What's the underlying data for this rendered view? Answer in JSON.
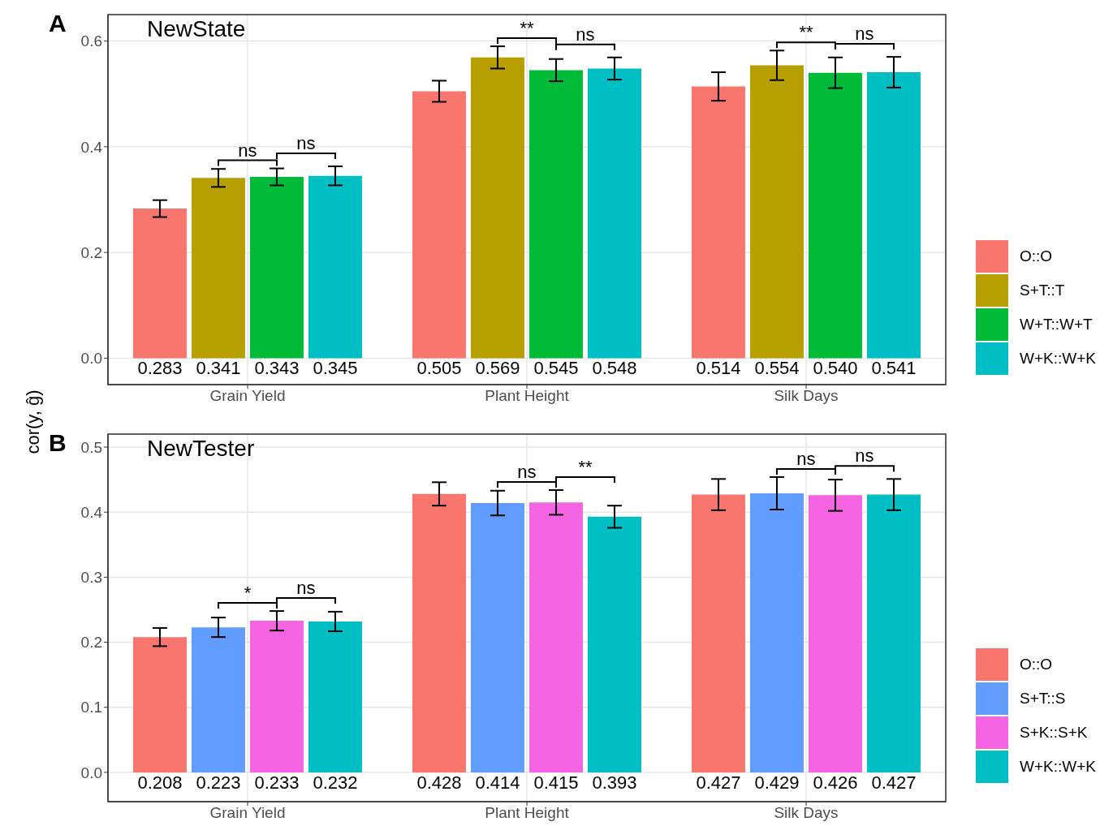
{
  "chart_data": [
    {
      "type": "bar",
      "title": "NewState",
      "ylabel": "cor(y, ĝ)",
      "annotations": [
        "A",
        "ns",
        "ns",
        "**",
        "ns",
        "**",
        "ns"
      ],
      "categories": [
        "Grain Yield",
        "Plant Height",
        "Silk Days"
      ],
      "series": [
        {
          "name": "O::O",
          "color": "#f8766d",
          "values": [
            0.283,
            0.505,
            0.514
          ],
          "errors": [
            0.016,
            0.02,
            0.027
          ],
          "value_labels": [
            "0.283",
            "0.505",
            "0.514"
          ]
        },
        {
          "name": "S+T::T",
          "color": "#b79f00",
          "values": [
            0.341,
            0.569,
            0.554
          ],
          "errors": [
            0.017,
            0.021,
            0.028
          ],
          "value_labels": [
            "0.341",
            "0.569",
            "0.554"
          ]
        },
        {
          "name": "W+T::W+T",
          "color": "#00ba38",
          "values": [
            0.343,
            0.545,
            0.54
          ],
          "errors": [
            0.016,
            0.021,
            0.029
          ],
          "value_labels": [
            "0.343",
            "0.545",
            "0.540"
          ]
        },
        {
          "name": "W+K::W+K",
          "color": "#00bfc4",
          "values": [
            0.345,
            0.548,
            0.541
          ],
          "errors": [
            0.018,
            0.021,
            0.029
          ],
          "value_labels": [
            "0.345",
            "0.548",
            "0.541"
          ]
        }
      ],
      "ylim": [
        -0.05,
        0.65
      ],
      "yticks": [
        {
          "value": 0,
          "label": "0.0"
        },
        0.2,
        0.4,
        0.6
      ],
      "grid": true,
      "legend": "right"
    },
    {
      "type": "bar",
      "title": "NewTester",
      "annotations": [
        "B",
        "*",
        "ns",
        "ns",
        "**",
        "ns",
        "ns"
      ],
      "categories": [
        "Grain Yield",
        "Plant Height",
        "Silk Days"
      ],
      "series": [
        {
          "name": "O::O",
          "color": "#f8766d",
          "values": [
            0.208,
            0.428,
            0.427
          ],
          "errors": [
            0.014,
            0.018,
            0.024
          ],
          "value_labels": [
            "0.208",
            "0.428",
            "0.427"
          ]
        },
        {
          "name": "S+T::S",
          "color": "#619cff",
          "values": [
            0.223,
            0.414,
            0.429
          ],
          "errors": [
            0.015,
            0.019,
            0.025
          ],
          "value_labels": [
            "0.223",
            "0.414",
            "0.429"
          ]
        },
        {
          "name": "S+K::S+K",
          "color": "#f564e3",
          "values": [
            0.233,
            0.415,
            0.426
          ],
          "errors": [
            0.015,
            0.019,
            0.024
          ],
          "value_labels": [
            "0.233",
            "0.415",
            "0.426"
          ]
        },
        {
          "name": "W+K::W+K",
          "color": "#00bfc4",
          "values": [
            0.232,
            0.393,
            0.427
          ],
          "errors": [
            0.015,
            0.017,
            0.024
          ],
          "value_labels": [
            "0.232",
            "0.393",
            "0.427"
          ]
        }
      ],
      "ylim": [
        -0.045,
        0.52
      ],
      "yticks": [
        {
          "value": 0,
          "label": "0.0"
        },
        0.1,
        0.2,
        0.3,
        0.4,
        0.5
      ],
      "grid": true,
      "legend": "right"
    }
  ]
}
